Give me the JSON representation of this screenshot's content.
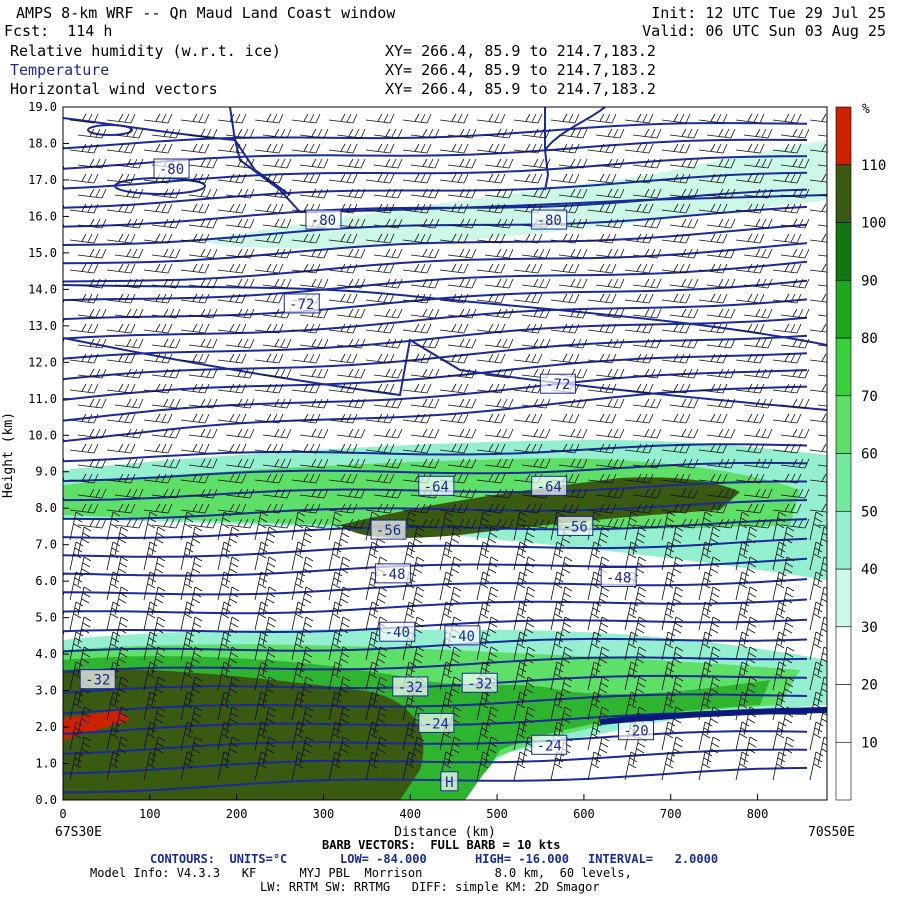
{
  "header": {
    "title": "AMPS 8-km WRF -- Qn Maud Land Coast window",
    "fcst": "Fcst:  114 h",
    "init": "Init: 12 UTC Tue 29 Jul 25",
    "valid": "Valid: 06 UTC Sun 03 Aug 25",
    "fields": [
      {
        "name": "Relative humidity (w.r.t. ice)",
        "xy": "XY= 266.4, 85.9 to 214.7,183.2"
      },
      {
        "name": "Temperature",
        "xy": "XY= 266.4, 85.9 to 214.7,183.2"
      },
      {
        "name": "Horizontal wind vectors",
        "xy": "XY= 266.4, 85.9 to 214.7,183.2"
      }
    ]
  },
  "chart_data": {
    "type": "heatmap",
    "title": "AMPS 8-km WRF -- Qn Maud Land Coast window",
    "xlabel": "Distance (km)",
    "ylabel": "Height (km)",
    "xlim": [
      0,
      880
    ],
    "ylim": [
      0,
      19
    ],
    "x_ticks": [
      0,
      100,
      200,
      300,
      400,
      500,
      600,
      700,
      800
    ],
    "y_ticks": [
      "0.0",
      "1.0",
      "2.0",
      "3.0",
      "4.0",
      "5.0",
      "6.0",
      "7.0",
      "8.0",
      "9.0",
      "10.0",
      "11.0",
      "12.0",
      "13.0",
      "14.0",
      "15.0",
      "16.0",
      "17.0",
      "18.0",
      "19.0"
    ],
    "x_endpoint_left": "67S30E",
    "x_endpoint_right": "70S50E",
    "colorbar": {
      "unit": "%",
      "levels": [
        10,
        20,
        30,
        40,
        50,
        60,
        70,
        80,
        90,
        100,
        110
      ],
      "colors": [
        "#ffffff",
        "#ffffff",
        "#ffffff",
        "#cdf8e8",
        "#93efd0",
        "#74e8a0",
        "#5ddf68",
        "#3ccf3c",
        "#1ea81e",
        "#117811",
        "#3a5a12",
        "#cc2200"
      ]
    },
    "contour_labels": [
      {
        "text": "-80",
        "x": 125,
        "y": 17.3
      },
      {
        "text": "-80",
        "x": 300,
        "y": 15.9
      },
      {
        "text": "-80",
        "x": 560,
        "y": 15.9
      },
      {
        "text": "-72",
        "x": 275,
        "y": 13.6
      },
      {
        "text": "-72",
        "x": 570,
        "y": 11.4
      },
      {
        "text": "-64",
        "x": 430,
        "y": 8.6
      },
      {
        "text": "-64",
        "x": 560,
        "y": 8.6
      },
      {
        "text": "-56",
        "x": 375,
        "y": 7.4
      },
      {
        "text": "-56",
        "x": 590,
        "y": 7.5
      },
      {
        "text": "-48",
        "x": 380,
        "y": 6.2
      },
      {
        "text": "-48",
        "x": 640,
        "y": 6.1
      },
      {
        "text": "-40",
        "x": 385,
        "y": 4.6
      },
      {
        "text": "-40",
        "x": 460,
        "y": 4.5
      },
      {
        "text": "-32",
        "x": 40,
        "y": 3.3
      },
      {
        "text": "-32",
        "x": 400,
        "y": 3.1
      },
      {
        "text": "-32",
        "x": 480,
        "y": 3.2
      },
      {
        "text": "-24",
        "x": 430,
        "y": 2.1
      },
      {
        "text": "-24",
        "x": 560,
        "y": 1.5
      },
      {
        "text": "-20",
        "x": 660,
        "y": 1.9
      },
      {
        "text": "H",
        "x": 445,
        "y": 0.5
      }
    ],
    "barb_note": "BARB VECTORS:  FULL BARB = 10 kts",
    "contours": {
      "label": "CONTOURS:  UNITS=°C",
      "low": "LOW= -84.000",
      "high": "HIGH= -16.000",
      "interval": "INTERVAL=   2.0000"
    }
  },
  "footer": {
    "line1": "Model Info: V4.3.3   KF      MYJ PBL  Morrison          8.0 km,  60 levels,",
    "line2": "LW: RRTM SW: RRTMG   DIFF: simple KM: 2D Smagor"
  }
}
